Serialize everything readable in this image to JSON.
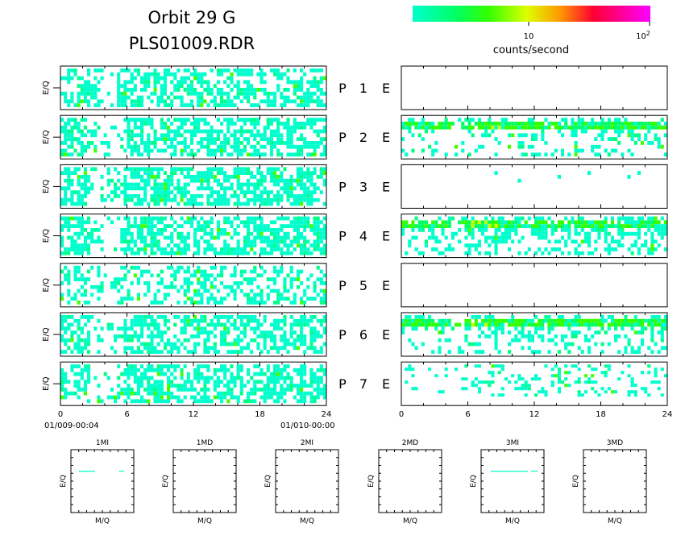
{
  "title": {
    "line1": "Orbit 29 G",
    "line2": "PLS01009.RDR"
  },
  "colorbar": {
    "label": "counts/second",
    "tick_10": "10",
    "tick_100_base": "10",
    "tick_100_exp": "2",
    "colors": [
      "#00ffcc",
      "#00ff66",
      "#33ff00",
      "#ccff00",
      "#ffcc00",
      "#ff6600",
      "#ff0033",
      "#ff00aa",
      "#ff00ff"
    ]
  },
  "ylabel": "E/Q",
  "panel_labels": {
    "p": "P",
    "e": "E"
  },
  "time_axis": {
    "ticks": [
      "0",
      "6",
      "12",
      "18",
      "24"
    ],
    "start_label": "01/009-00:04",
    "end_label": "01/010-00:00"
  },
  "small_panels": {
    "xlabel": "M/Q",
    "ylabel": "E/Q",
    "titles": [
      "1MI",
      "1MD",
      "2MI",
      "2MD",
      "3MI",
      "3MD"
    ]
  },
  "chart_data": {
    "type": "heatmap",
    "x_range_hours": [
      0,
      24
    ],
    "color_scale": "log",
    "color_range_counts_per_second": [
      1,
      100
    ],
    "rows": [
      {
        "p": "1",
        "left_density": 0.55,
        "right_density": 0.0,
        "right_band": false
      },
      {
        "p": "2",
        "left_density": 0.62,
        "right_density": 0.35,
        "right_band": true
      },
      {
        "p": "3",
        "left_density": 0.66,
        "right_density": 0.01,
        "right_band": false
      },
      {
        "p": "4",
        "left_density": 0.64,
        "right_density": 0.55,
        "right_band": true
      },
      {
        "p": "5",
        "left_density": 0.45,
        "right_density": 0.0,
        "right_band": false
      },
      {
        "p": "6",
        "left_density": 0.58,
        "right_density": 0.38,
        "right_band": true
      },
      {
        "p": "7",
        "left_density": 0.6,
        "right_density": 0.22,
        "right_band": false
      }
    ],
    "small_panel_lines": [
      true,
      false,
      false,
      false,
      true,
      false
    ]
  }
}
